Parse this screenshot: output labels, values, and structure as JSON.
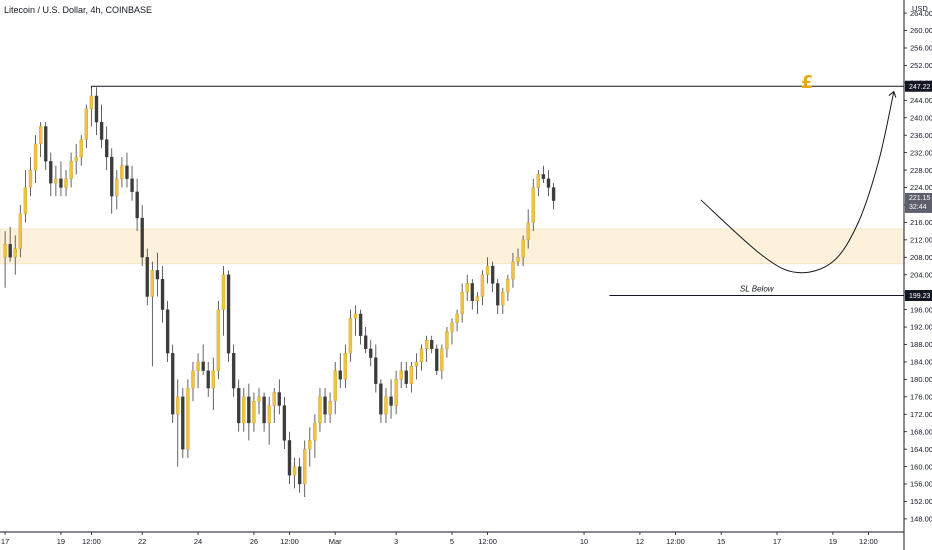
{
  "header": {
    "title": "Litecoin / U.S. Dollar, 4h, COINBASE",
    "currency": "USD"
  },
  "badges": {
    "resistance": "247.22",
    "current_price": "221.15",
    "countdown": "32:44",
    "stop": "199.23"
  },
  "annotations": {
    "sl_label": "SL Below",
    "pound_symbol": "£"
  },
  "colors": {
    "up": "#f0c341",
    "down": "#3c3c3c",
    "zone": "#fdf1dc",
    "pound": "#e6a817",
    "badge_dark": "#131722",
    "badge_price": "#5d606b"
  },
  "chart_data": {
    "type": "candlestick",
    "symbol": "Litecoin / U.S. Dollar",
    "interval": "4h",
    "exchange": "COINBASE",
    "y_axis_ticks": [
      "264.00",
      "260.00",
      "256.00",
      "252.00",
      "248.00",
      "244.00",
      "240.00",
      "236.00",
      "232.00",
      "228.00",
      "224.00",
      "220.00",
      "216.00",
      "212.00",
      "208.00",
      "204.00",
      "200.00",
      "196.00",
      "192.00",
      "188.00",
      "184.00",
      "180.00",
      "176.00",
      "172.00",
      "168.00",
      "164.00",
      "160.00",
      "156.00",
      "152.00",
      "148.00"
    ],
    "ylim": [
      145,
      267
    ],
    "x_axis_ticks": [
      {
        "label": "17",
        "i": 0
      },
      {
        "label": "19",
        "i": 11
      },
      {
        "label": "12:00",
        "i": 17
      },
      {
        "label": "22",
        "i": 27
      },
      {
        "label": "24",
        "i": 38
      },
      {
        "label": "26",
        "i": 49
      },
      {
        "label": "12:00",
        "i": 56
      },
      {
        "label": "Mar",
        "i": 65
      },
      {
        "label": "3",
        "i": 77
      },
      {
        "label": "5",
        "i": 88
      },
      {
        "label": "12:00",
        "i": 95
      },
      {
        "label": "10",
        "i": 114
      },
      {
        "label": "12",
        "i": 125
      },
      {
        "label": "12:00",
        "i": 132
      },
      {
        "label": "15",
        "i": 141
      },
      {
        "label": "17",
        "i": 152
      },
      {
        "label": "19",
        "i": 163
      },
      {
        "label": "12:00",
        "i": 170
      }
    ],
    "x_range": [
      -1,
      177
    ],
    "resistance_level": 247.22,
    "stop_level": 199.23,
    "current_price": 221.15,
    "demand_zone": [
      206.5,
      214.5
    ],
    "projected_path": [
      {
        "i": 137,
        "price": 221.15
      },
      {
        "i": 149,
        "price": 208.5
      },
      {
        "i": 156,
        "price": 204.5
      },
      {
        "i": 163,
        "price": 207
      },
      {
        "i": 168,
        "price": 216
      },
      {
        "i": 172,
        "price": 230
      },
      {
        "i": 175,
        "price": 246
      }
    ],
    "candles": [
      {
        "o": 208,
        "h": 214,
        "l": 201,
        "c": 211
      },
      {
        "o": 211,
        "h": 215,
        "l": 207,
        "c": 208
      },
      {
        "o": 208,
        "h": 213,
        "l": 204,
        "c": 210
      },
      {
        "o": 210,
        "h": 220,
        "l": 208,
        "c": 218
      },
      {
        "o": 218,
        "h": 228,
        "l": 216,
        "c": 224
      },
      {
        "o": 224,
        "h": 231,
        "l": 222,
        "c": 228
      },
      {
        "o": 228,
        "h": 236,
        "l": 225,
        "c": 234
      },
      {
        "o": 234,
        "h": 239,
        "l": 231,
        "c": 238
      },
      {
        "o": 238,
        "h": 239,
        "l": 228,
        "c": 230
      },
      {
        "o": 230,
        "h": 232,
        "l": 222,
        "c": 225
      },
      {
        "o": 225,
        "h": 229,
        "l": 222,
        "c": 226
      },
      {
        "o": 226,
        "h": 230,
        "l": 222,
        "c": 224
      },
      {
        "o": 224,
        "h": 228,
        "l": 222,
        "c": 226
      },
      {
        "o": 226,
        "h": 232,
        "l": 224,
        "c": 230
      },
      {
        "o": 230,
        "h": 234,
        "l": 227,
        "c": 231
      },
      {
        "o": 231,
        "h": 236,
        "l": 229,
        "c": 235
      },
      {
        "o": 235,
        "h": 243,
        "l": 233,
        "c": 242
      },
      {
        "o": 242,
        "h": 247,
        "l": 238,
        "c": 245
      },
      {
        "o": 245,
        "h": 247,
        "l": 236,
        "c": 239
      },
      {
        "o": 239,
        "h": 243,
        "l": 233,
        "c": 235
      },
      {
        "o": 235,
        "h": 238,
        "l": 228,
        "c": 231
      },
      {
        "o": 231,
        "h": 233,
        "l": 218,
        "c": 222
      },
      {
        "o": 222,
        "h": 228,
        "l": 219,
        "c": 226
      },
      {
        "o": 226,
        "h": 231,
        "l": 224,
        "c": 229
      },
      {
        "o": 229,
        "h": 232,
        "l": 224,
        "c": 226
      },
      {
        "o": 226,
        "h": 229,
        "l": 221,
        "c": 223
      },
      {
        "o": 223,
        "h": 226,
        "l": 214,
        "c": 217
      },
      {
        "o": 217,
        "h": 220,
        "l": 206,
        "c": 208
      },
      {
        "o": 208,
        "h": 210,
        "l": 197,
        "c": 199
      },
      {
        "o": 199,
        "h": 207,
        "l": 183,
        "c": 205
      },
      {
        "o": 205,
        "h": 209,
        "l": 199,
        "c": 203
      },
      {
        "o": 203,
        "h": 206,
        "l": 193,
        "c": 196
      },
      {
        "o": 196,
        "h": 198,
        "l": 184,
        "c": 186
      },
      {
        "o": 186,
        "h": 188,
        "l": 170,
        "c": 172
      },
      {
        "o": 172,
        "h": 180,
        "l": 160,
        "c": 176
      },
      {
        "o": 176,
        "h": 178,
        "l": 162,
        "c": 164
      },
      {
        "o": 164,
        "h": 180,
        "l": 162,
        "c": 178
      },
      {
        "o": 178,
        "h": 184,
        "l": 175,
        "c": 182
      },
      {
        "o": 182,
        "h": 186,
        "l": 178,
        "c": 184
      },
      {
        "o": 184,
        "h": 188,
        "l": 181,
        "c": 182
      },
      {
        "o": 182,
        "h": 184,
        "l": 176,
        "c": 178
      },
      {
        "o": 178,
        "h": 185,
        "l": 173,
        "c": 182
      },
      {
        "o": 182,
        "h": 198,
        "l": 180,
        "c": 196
      },
      {
        "o": 196,
        "h": 206,
        "l": 190,
        "c": 204
      },
      {
        "o": 204,
        "h": 205,
        "l": 184,
        "c": 186
      },
      {
        "o": 186,
        "h": 188,
        "l": 176,
        "c": 178
      },
      {
        "o": 178,
        "h": 180,
        "l": 168,
        "c": 170
      },
      {
        "o": 170,
        "h": 178,
        "l": 168,
        "c": 176
      },
      {
        "o": 176,
        "h": 179,
        "l": 166,
        "c": 170
      },
      {
        "o": 170,
        "h": 177,
        "l": 168,
        "c": 175
      },
      {
        "o": 175,
        "h": 178,
        "l": 172,
        "c": 176
      },
      {
        "o": 176,
        "h": 177,
        "l": 168,
        "c": 170
      },
      {
        "o": 170,
        "h": 176,
        "l": 165,
        "c": 174
      },
      {
        "o": 174,
        "h": 178,
        "l": 170,
        "c": 177
      },
      {
        "o": 177,
        "h": 180,
        "l": 172,
        "c": 174
      },
      {
        "o": 174,
        "h": 176,
        "l": 164,
        "c": 166
      },
      {
        "o": 166,
        "h": 168,
        "l": 156,
        "c": 158
      },
      {
        "o": 158,
        "h": 162,
        "l": 155,
        "c": 160
      },
      {
        "o": 160,
        "h": 162,
        "l": 154,
        "c": 156
      },
      {
        "o": 156,
        "h": 166,
        "l": 153,
        "c": 164
      },
      {
        "o": 164,
        "h": 169,
        "l": 160,
        "c": 166
      },
      {
        "o": 166,
        "h": 172,
        "l": 162,
        "c": 170
      },
      {
        "o": 170,
        "h": 178,
        "l": 168,
        "c": 176
      },
      {
        "o": 176,
        "h": 178,
        "l": 170,
        "c": 172
      },
      {
        "o": 172,
        "h": 177,
        "l": 170,
        "c": 175
      },
      {
        "o": 175,
        "h": 184,
        "l": 172,
        "c": 182
      },
      {
        "o": 182,
        "h": 186,
        "l": 178,
        "c": 180
      },
      {
        "o": 180,
        "h": 188,
        "l": 178,
        "c": 186
      },
      {
        "o": 186,
        "h": 196,
        "l": 184,
        "c": 194
      },
      {
        "o": 194,
        "h": 197,
        "l": 190,
        "c": 195
      },
      {
        "o": 195,
        "h": 196,
        "l": 188,
        "c": 190
      },
      {
        "o": 190,
        "h": 192,
        "l": 186,
        "c": 187
      },
      {
        "o": 187,
        "h": 189,
        "l": 183,
        "c": 185
      },
      {
        "o": 185,
        "h": 188,
        "l": 177,
        "c": 179
      },
      {
        "o": 179,
        "h": 180,
        "l": 170,
        "c": 172
      },
      {
        "o": 172,
        "h": 178,
        "l": 170,
        "c": 176
      },
      {
        "o": 176,
        "h": 180,
        "l": 171,
        "c": 174
      },
      {
        "o": 174,
        "h": 182,
        "l": 172,
        "c": 180
      },
      {
        "o": 180,
        "h": 184,
        "l": 178,
        "c": 182
      },
      {
        "o": 182,
        "h": 184,
        "l": 178,
        "c": 179
      },
      {
        "o": 179,
        "h": 184,
        "l": 177,
        "c": 183
      },
      {
        "o": 183,
        "h": 186,
        "l": 180,
        "c": 184
      },
      {
        "o": 184,
        "h": 188,
        "l": 182,
        "c": 187
      },
      {
        "o": 187,
        "h": 190,
        "l": 184,
        "c": 189
      },
      {
        "o": 189,
        "h": 190,
        "l": 186,
        "c": 187
      },
      {
        "o": 187,
        "h": 188,
        "l": 181,
        "c": 182
      },
      {
        "o": 182,
        "h": 188,
        "l": 180,
        "c": 187
      },
      {
        "o": 187,
        "h": 192,
        "l": 185,
        "c": 191
      },
      {
        "o": 191,
        "h": 194,
        "l": 188,
        "c": 193
      },
      {
        "o": 193,
        "h": 196,
        "l": 191,
        "c": 195
      },
      {
        "o": 195,
        "h": 202,
        "l": 193,
        "c": 200
      },
      {
        "o": 200,
        "h": 204,
        "l": 198,
        "c": 202
      },
      {
        "o": 202,
        "h": 203,
        "l": 196,
        "c": 198
      },
      {
        "o": 198,
        "h": 200,
        "l": 195,
        "c": 199
      },
      {
        "o": 199,
        "h": 205,
        "l": 197,
        "c": 204
      },
      {
        "o": 204,
        "h": 208,
        "l": 202,
        "c": 206
      },
      {
        "o": 206,
        "h": 207,
        "l": 200,
        "c": 202
      },
      {
        "o": 202,
        "h": 203,
        "l": 195,
        "c": 197
      },
      {
        "o": 197,
        "h": 201,
        "l": 195,
        "c": 200
      },
      {
        "o": 200,
        "h": 204,
        "l": 198,
        "c": 203
      },
      {
        "o": 203,
        "h": 209,
        "l": 201,
        "c": 207
      },
      {
        "o": 207,
        "h": 210,
        "l": 206,
        "c": 208
      },
      {
        "o": 208,
        "h": 213,
        "l": 206,
        "c": 212
      },
      {
        "o": 212,
        "h": 219,
        "l": 210,
        "c": 216
      },
      {
        "o": 216,
        "h": 226,
        "l": 214,
        "c": 224
      },
      {
        "o": 224,
        "h": 228,
        "l": 222,
        "c": 227
      },
      {
        "o": 227,
        "h": 229,
        "l": 225,
        "c": 226
      },
      {
        "o": 226,
        "h": 228,
        "l": 222,
        "c": 224
      },
      {
        "o": 224,
        "h": 225,
        "l": 219,
        "c": 221
      }
    ]
  }
}
